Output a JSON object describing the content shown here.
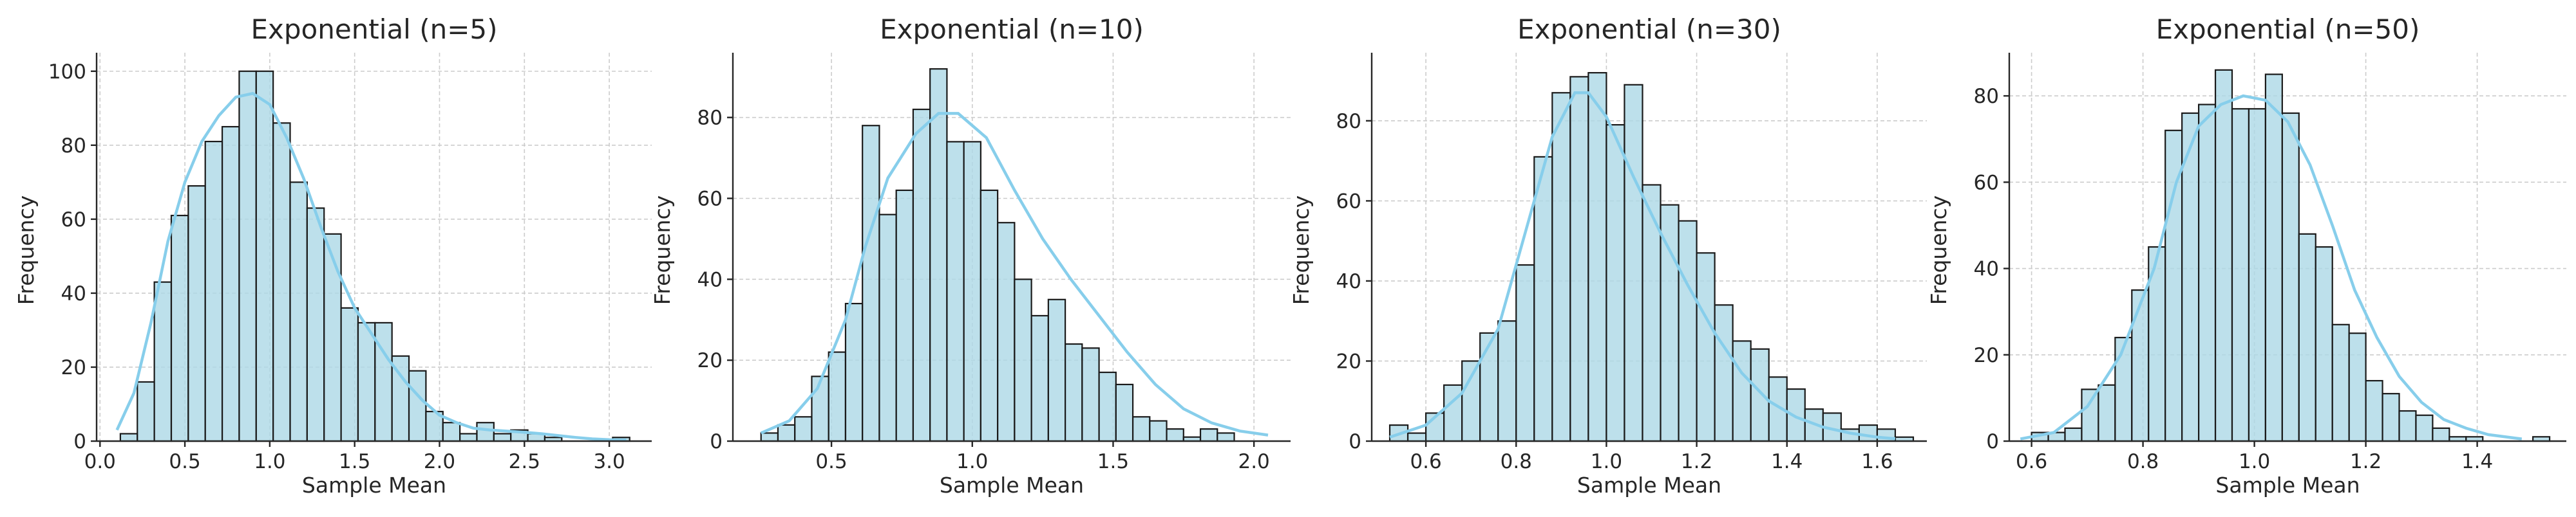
{
  "chart_data": [
    {
      "type": "bar",
      "title": "Exponential (n=5)",
      "xlabel": "Sample Mean",
      "ylabel": "Frequency",
      "xlim": [
        -0.02,
        3.25
      ],
      "ylim": [
        0,
        105
      ],
      "xticks": [
        0.0,
        0.5,
        1.0,
        1.5,
        2.0,
        2.5,
        3.0
      ],
      "xtick_labels": [
        "0.0",
        "0.5",
        "1.0",
        "1.5",
        "2.0",
        "2.5",
        "3.0"
      ],
      "yticks": [
        0,
        20,
        40,
        60,
        80,
        100
      ],
      "ytick_labels": [
        "0",
        "20",
        "40",
        "60",
        "80",
        "100"
      ],
      "grid": true,
      "bins_start": 0.12,
      "bin_width": 0.1,
      "values": [
        2,
        16,
        43,
        61,
        69,
        81,
        85,
        100,
        100,
        86,
        70,
        63,
        56,
        36,
        32,
        32,
        23,
        19,
        8,
        5,
        2,
        5,
        2,
        3,
        2,
        1,
        0,
        0,
        0,
        1
      ],
      "kde": [
        [
          0.1,
          3
        ],
        [
          0.2,
          13
        ],
        [
          0.3,
          32
        ],
        [
          0.4,
          54
        ],
        [
          0.5,
          70
        ],
        [
          0.6,
          81
        ],
        [
          0.7,
          88
        ],
        [
          0.8,
          93
        ],
        [
          0.9,
          94
        ],
        [
          1.0,
          91
        ],
        [
          1.1,
          82
        ],
        [
          1.2,
          71
        ],
        [
          1.3,
          58
        ],
        [
          1.4,
          46
        ],
        [
          1.5,
          36
        ],
        [
          1.6,
          29
        ],
        [
          1.7,
          22
        ],
        [
          1.8,
          16
        ],
        [
          1.9,
          11
        ],
        [
          2.0,
          7
        ],
        [
          2.1,
          5
        ],
        [
          2.2,
          3.5
        ],
        [
          2.3,
          3
        ],
        [
          2.4,
          2.7
        ],
        [
          2.5,
          2.4
        ],
        [
          2.6,
          2
        ],
        [
          2.7,
          1.5
        ],
        [
          2.8,
          1
        ],
        [
          2.9,
          0.6
        ],
        [
          3.0,
          0.4
        ],
        [
          3.1,
          0.3
        ]
      ]
    },
    {
      "type": "bar",
      "title": "Exponential (n=10)",
      "xlabel": "Sample Mean",
      "ylabel": "Frequency",
      "xlim": [
        0.15,
        2.13
      ],
      "ylim": [
        0,
        96
      ],
      "xticks": [
        0.5,
        1.0,
        1.5,
        2.0
      ],
      "xtick_labels": [
        "0.5",
        "1.0",
        "1.5",
        "2.0"
      ],
      "yticks": [
        0,
        20,
        40,
        60,
        80
      ],
      "ytick_labels": [
        "0",
        "20",
        "40",
        "60",
        "80"
      ],
      "grid": true,
      "bins_start": 0.25,
      "bin_width": 0.06,
      "values": [
        2,
        4,
        6,
        16,
        22,
        34,
        78,
        56,
        62,
        82,
        92,
        74,
        74,
        62,
        54,
        40,
        31,
        35,
        24,
        23,
        17,
        14,
        6,
        5,
        3,
        1,
        3,
        2
      ],
      "kde": [
        [
          0.25,
          2
        ],
        [
          0.35,
          5
        ],
        [
          0.45,
          13
        ],
        [
          0.55,
          30
        ],
        [
          0.62,
          48
        ],
        [
          0.7,
          65
        ],
        [
          0.8,
          76
        ],
        [
          0.88,
          81
        ],
        [
          0.95,
          81
        ],
        [
          1.05,
          75
        ],
        [
          1.15,
          62
        ],
        [
          1.25,
          50
        ],
        [
          1.35,
          40
        ],
        [
          1.45,
          31
        ],
        [
          1.55,
          22
        ],
        [
          1.65,
          14
        ],
        [
          1.75,
          8
        ],
        [
          1.85,
          4.5
        ],
        [
          1.95,
          2.5
        ],
        [
          2.05,
          1.5
        ]
      ]
    },
    {
      "type": "bar",
      "title": "Exponential (n=30)",
      "xlabel": "Sample Mean",
      "ylabel": "Frequency",
      "xlim": [
        0.48,
        1.71
      ],
      "ylim": [
        0,
        97
      ],
      "xticks": [
        0.6,
        0.8,
        1.0,
        1.2,
        1.4,
        1.6
      ],
      "xtick_labels": [
        "0.6",
        "0.8",
        "1.0",
        "1.2",
        "1.4",
        "1.6"
      ],
      "yticks": [
        0,
        20,
        40,
        60,
        80
      ],
      "ytick_labels": [
        "0",
        "20",
        "40",
        "60",
        "80"
      ],
      "grid": true,
      "bins_start": 0.52,
      "bin_width": 0.04,
      "values": [
        4,
        2,
        7,
        14,
        20,
        27,
        30,
        44,
        71,
        87,
        91,
        92,
        79,
        89,
        64,
        59,
        55,
        47,
        34,
        25,
        23,
        16,
        13,
        8,
        7,
        3,
        4,
        3,
        1
      ],
      "kde": [
        [
          0.52,
          1
        ],
        [
          0.6,
          4
        ],
        [
          0.68,
          12
        ],
        [
          0.76,
          28
        ],
        [
          0.82,
          52
        ],
        [
          0.88,
          76
        ],
        [
          0.93,
          87
        ],
        [
          0.96,
          87
        ],
        [
          1.0,
          81
        ],
        [
          1.06,
          66
        ],
        [
          1.12,
          52
        ],
        [
          1.18,
          39
        ],
        [
          1.24,
          27
        ],
        [
          1.3,
          17
        ],
        [
          1.36,
          10
        ],
        [
          1.42,
          6
        ],
        [
          1.48,
          3.5
        ],
        [
          1.54,
          2
        ],
        [
          1.6,
          1
        ],
        [
          1.64,
          0.6
        ]
      ]
    },
    {
      "type": "bar",
      "title": "Exponential (n=50)",
      "xlabel": "Sample Mean",
      "ylabel": "Frequency",
      "xlim": [
        0.56,
        1.56
      ],
      "ylim": [
        0,
        90
      ],
      "xticks": [
        0.6,
        0.8,
        1.0,
        1.2,
        1.4
      ],
      "xtick_labels": [
        "0.6",
        "0.8",
        "1.0",
        "1.2",
        "1.4"
      ],
      "yticks": [
        0,
        20,
        40,
        60,
        80
      ],
      "ytick_labels": [
        "0",
        "20",
        "40",
        "60",
        "80"
      ],
      "grid": true,
      "bins_start": 0.6,
      "bin_width": 0.03,
      "values": [
        2,
        2,
        3,
        12,
        13,
        24,
        35,
        45,
        72,
        76,
        78,
        86,
        77,
        77,
        85,
        76,
        48,
        45,
        27,
        25,
        14,
        11,
        7,
        6,
        3,
        1,
        1,
        0,
        0,
        0,
        1
      ],
      "kde": [
        [
          0.58,
          0.5
        ],
        [
          0.64,
          2
        ],
        [
          0.7,
          8
        ],
        [
          0.76,
          20
        ],
        [
          0.82,
          40
        ],
        [
          0.86,
          60
        ],
        [
          0.9,
          73
        ],
        [
          0.94,
          78
        ],
        [
          0.98,
          80
        ],
        [
          1.02,
          79
        ],
        [
          1.06,
          74
        ],
        [
          1.1,
          64
        ],
        [
          1.14,
          50
        ],
        [
          1.18,
          35
        ],
        [
          1.22,
          24
        ],
        [
          1.26,
          15
        ],
        [
          1.3,
          9
        ],
        [
          1.34,
          5
        ],
        [
          1.38,
          3
        ],
        [
          1.42,
          1.5
        ],
        [
          1.48,
          0.5
        ]
      ]
    }
  ]
}
